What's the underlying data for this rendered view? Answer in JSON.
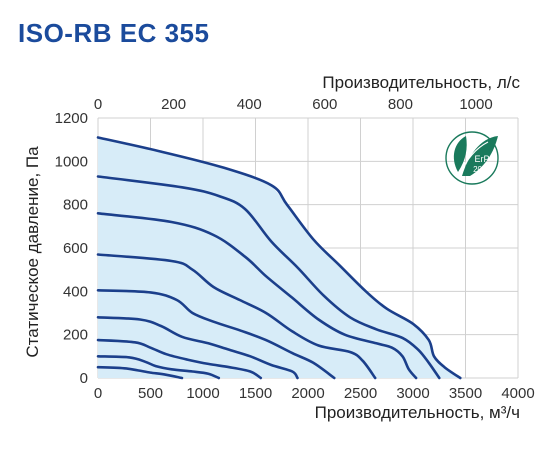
{
  "chart_data": {
    "type": "line",
    "title": "ISO-RB EC 355",
    "xlabel": "Производительность, м³/ч",
    "x2label": "Производительность, л/с",
    "ylabel": "Статическое давление, Па",
    "xlim": [
      0,
      4000
    ],
    "x2lim": [
      0,
      1111
    ],
    "ylim": [
      0,
      1200
    ],
    "x_ticks": [
      "0",
      "500",
      "1000",
      "1500",
      "2000",
      "2500",
      "3000",
      "3500",
      "4000"
    ],
    "x2_ticks": [
      "0",
      "200",
      "400",
      "600",
      "800",
      "1000"
    ],
    "y_ticks": [
      "0",
      "200",
      "400",
      "600",
      "800",
      "1000",
      "1200"
    ],
    "grid": true,
    "series": [
      {
        "points": [
          [
            0,
            1110
          ],
          [
            600,
            1045
          ],
          [
            1200,
            970
          ],
          [
            1650,
            890
          ],
          [
            1800,
            800
          ],
          [
            2050,
            640
          ],
          [
            2300,
            520
          ],
          [
            2550,
            400
          ],
          [
            2750,
            320
          ],
          [
            3000,
            250
          ],
          [
            3150,
            175
          ],
          [
            3200,
            100
          ],
          [
            3300,
            50
          ],
          [
            3450,
            0
          ]
        ]
      },
      {
        "points": [
          [
            0,
            930
          ],
          [
            800,
            880
          ],
          [
            1150,
            840
          ],
          [
            1400,
            780
          ],
          [
            1650,
            630
          ],
          [
            1900,
            510
          ],
          [
            2150,
            380
          ],
          [
            2400,
            280
          ],
          [
            2650,
            225
          ],
          [
            2900,
            185
          ],
          [
            3050,
            130
          ],
          [
            3150,
            70
          ],
          [
            3250,
            0
          ]
        ]
      },
      {
        "points": [
          [
            0,
            760
          ],
          [
            700,
            720
          ],
          [
            1100,
            660
          ],
          [
            1400,
            560
          ],
          [
            1600,
            470
          ],
          [
            1850,
            370
          ],
          [
            2100,
            270
          ],
          [
            2350,
            200
          ],
          [
            2650,
            160
          ],
          [
            2800,
            140
          ],
          [
            2900,
            100
          ],
          [
            2960,
            40
          ],
          [
            3030,
            0
          ]
        ]
      },
      {
        "points": [
          [
            0,
            570
          ],
          [
            700,
            540
          ],
          [
            900,
            500
          ],
          [
            1100,
            420
          ],
          [
            1350,
            360
          ],
          [
            1600,
            300
          ],
          [
            1850,
            215
          ],
          [
            2100,
            150
          ],
          [
            2400,
            120
          ],
          [
            2520,
            80
          ],
          [
            2640,
            0
          ]
        ]
      },
      {
        "points": [
          [
            0,
            405
          ],
          [
            500,
            395
          ],
          [
            750,
            360
          ],
          [
            900,
            300
          ],
          [
            1100,
            260
          ],
          [
            1350,
            220
          ],
          [
            1600,
            175
          ],
          [
            1850,
            115
          ],
          [
            2050,
            70
          ],
          [
            2250,
            0
          ]
        ]
      },
      {
        "points": [
          [
            0,
            280
          ],
          [
            400,
            270
          ],
          [
            600,
            240
          ],
          [
            800,
            190
          ],
          [
            1050,
            160
          ],
          [
            1250,
            130
          ],
          [
            1450,
            100
          ],
          [
            1650,
            60
          ],
          [
            1850,
            30
          ],
          [
            1900,
            0
          ]
        ]
      },
      {
        "points": [
          [
            0,
            175
          ],
          [
            350,
            165
          ],
          [
            500,
            140
          ],
          [
            650,
            110
          ],
          [
            850,
            85
          ],
          [
            1050,
            65
          ],
          [
            1250,
            50
          ],
          [
            1450,
            30
          ],
          [
            1550,
            0
          ]
        ]
      },
      {
        "points": [
          [
            0,
            100
          ],
          [
            300,
            95
          ],
          [
            450,
            75
          ],
          [
            550,
            55
          ],
          [
            700,
            40
          ],
          [
            900,
            30
          ],
          [
            1050,
            20
          ],
          [
            1150,
            0
          ]
        ]
      },
      {
        "points": [
          [
            0,
            50
          ],
          [
            250,
            45
          ],
          [
            380,
            35
          ],
          [
            500,
            25
          ],
          [
            650,
            15
          ],
          [
            800,
            0
          ]
        ]
      }
    ],
    "colors": {
      "line": "#1b3f8b",
      "fill": "#d7ecf8",
      "grid": "#d0d0d0",
      "title": "#1b4b9c"
    }
  },
  "badge": {
    "line1": "ErP",
    "line2": "2018",
    "icon": "erp-leaf-icon",
    "color": "#1a7a5c"
  }
}
